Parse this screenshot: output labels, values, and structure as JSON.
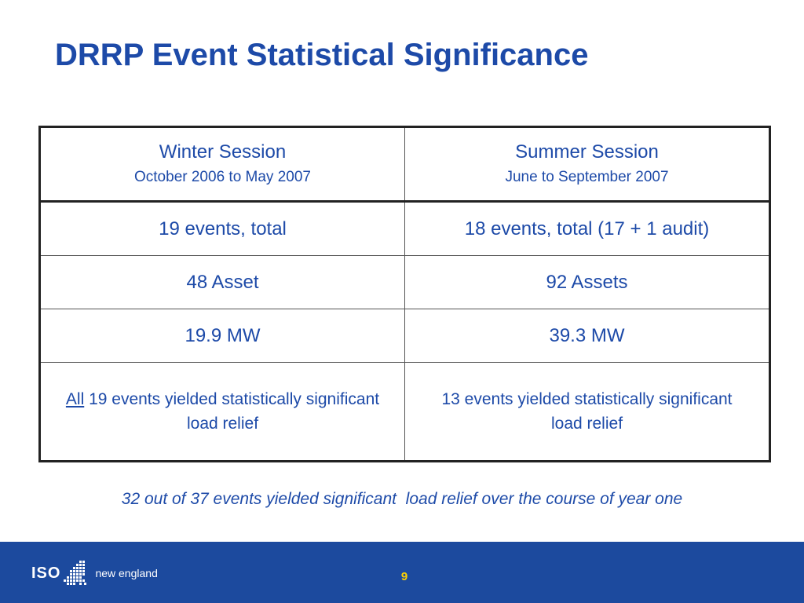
{
  "slide": {
    "title": "DRRP Event Statistical Significance",
    "page_number": "9"
  },
  "table": {
    "columns": [
      {
        "title": "Winter Session",
        "subtitle": "October 2006 to May 2007"
      },
      {
        "title": "Summer Session",
        "subtitle": "June to September 2007"
      }
    ],
    "rows": [
      [
        "19 events, total",
        "18 events, total (17 + 1 audit)"
      ],
      [
        "48 Asset",
        "92 Assets"
      ],
      [
        "19.9 MW",
        "39.3 MW"
      ]
    ],
    "results": {
      "winter_prefix": "All",
      "winter_text": " 19 events yielded statistically significant load relief",
      "summer_text": "13 events yielded statistically significant load relief"
    }
  },
  "footnote": "32 out of 37 events yielded significant  load relief over the course of year one",
  "footer": {
    "logo_iso": "ISO",
    "logo_text": "new england"
  },
  "colors": {
    "text_blue": "#1d4aa8",
    "footer_blue": "#1c4a9e",
    "page_number_yellow": "#ffd200"
  }
}
